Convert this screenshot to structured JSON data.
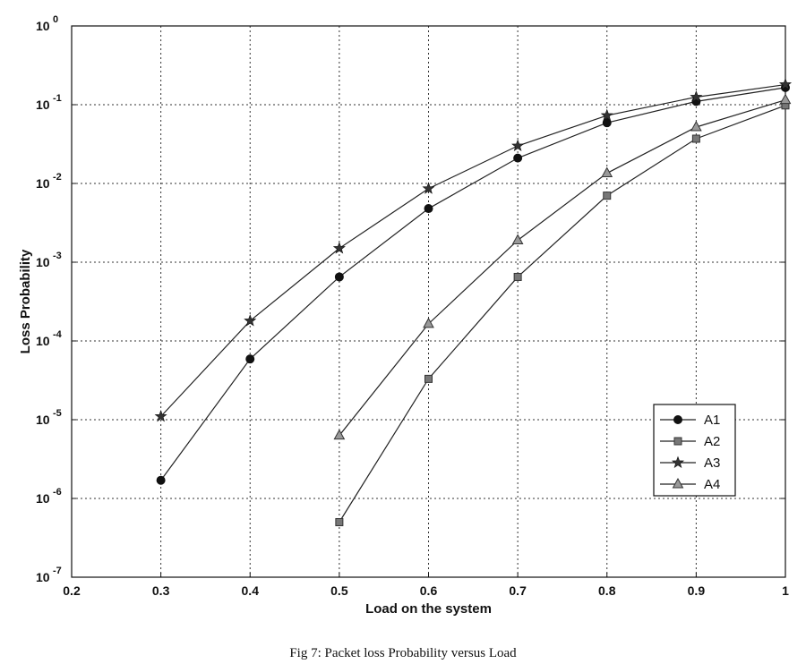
{
  "chart_data": {
    "type": "line",
    "title": "",
    "xlabel": "Load on the system",
    "ylabel": "Loss Probability",
    "caption": "Fig 7: Packet loss Probability versus Load",
    "xlim": [
      0.2,
      1
    ],
    "ylim": [
      1e-07,
      1
    ],
    "yscale": "log",
    "grid": true,
    "legend_position": "lower-right",
    "x_ticks": [
      "0.2",
      "0.3",
      "0.4",
      "0.5",
      "0.6",
      "0.7",
      "0.8",
      "0.9",
      "1"
    ],
    "y_ticks": [
      {
        "value": 1e-07,
        "base": "10",
        "exp": "-7"
      },
      {
        "value": 1e-06,
        "base": "10",
        "exp": "-6"
      },
      {
        "value": 1e-05,
        "base": "10",
        "exp": "-5"
      },
      {
        "value": 0.0001,
        "base": "10",
        "exp": "-4"
      },
      {
        "value": 0.001,
        "base": "10",
        "exp": "-3"
      },
      {
        "value": 0.01,
        "base": "10",
        "exp": "-2"
      },
      {
        "value": 0.1,
        "base": "10",
        "exp": "-1"
      },
      {
        "value": 1,
        "base": "10",
        "exp": "0"
      }
    ],
    "series": [
      {
        "name": "A1",
        "marker": "circle",
        "color": "#222222",
        "x": [
          0.3,
          0.4,
          0.5,
          0.6,
          0.7,
          0.8,
          0.9,
          1.0
        ],
        "y": [
          1.7e-06,
          5.9e-05,
          0.00065,
          0.0048,
          0.021,
          0.059,
          0.11,
          0.165
        ]
      },
      {
        "name": "A2",
        "marker": "square",
        "color": "#555555",
        "x": [
          0.5,
          0.6,
          0.7,
          0.8,
          0.9,
          1.0
        ],
        "y": [
          5e-07,
          3.3e-05,
          0.00065,
          0.007,
          0.037,
          0.098
        ]
      },
      {
        "name": "A3",
        "marker": "star",
        "color": "#222222",
        "x": [
          0.3,
          0.4,
          0.5,
          0.6,
          0.7,
          0.8,
          0.9,
          1.0
        ],
        "y": [
          1.1e-05,
          0.00018,
          0.0015,
          0.0086,
          0.03,
          0.073,
          0.125,
          0.18
        ]
      },
      {
        "name": "A4",
        "marker": "triangle",
        "color": "#666666",
        "x": [
          0.5,
          0.6,
          0.7,
          0.8,
          0.9,
          1.0
        ],
        "y": [
          6.3e-06,
          0.000165,
          0.0019,
          0.0135,
          0.052,
          0.115
        ]
      }
    ]
  }
}
